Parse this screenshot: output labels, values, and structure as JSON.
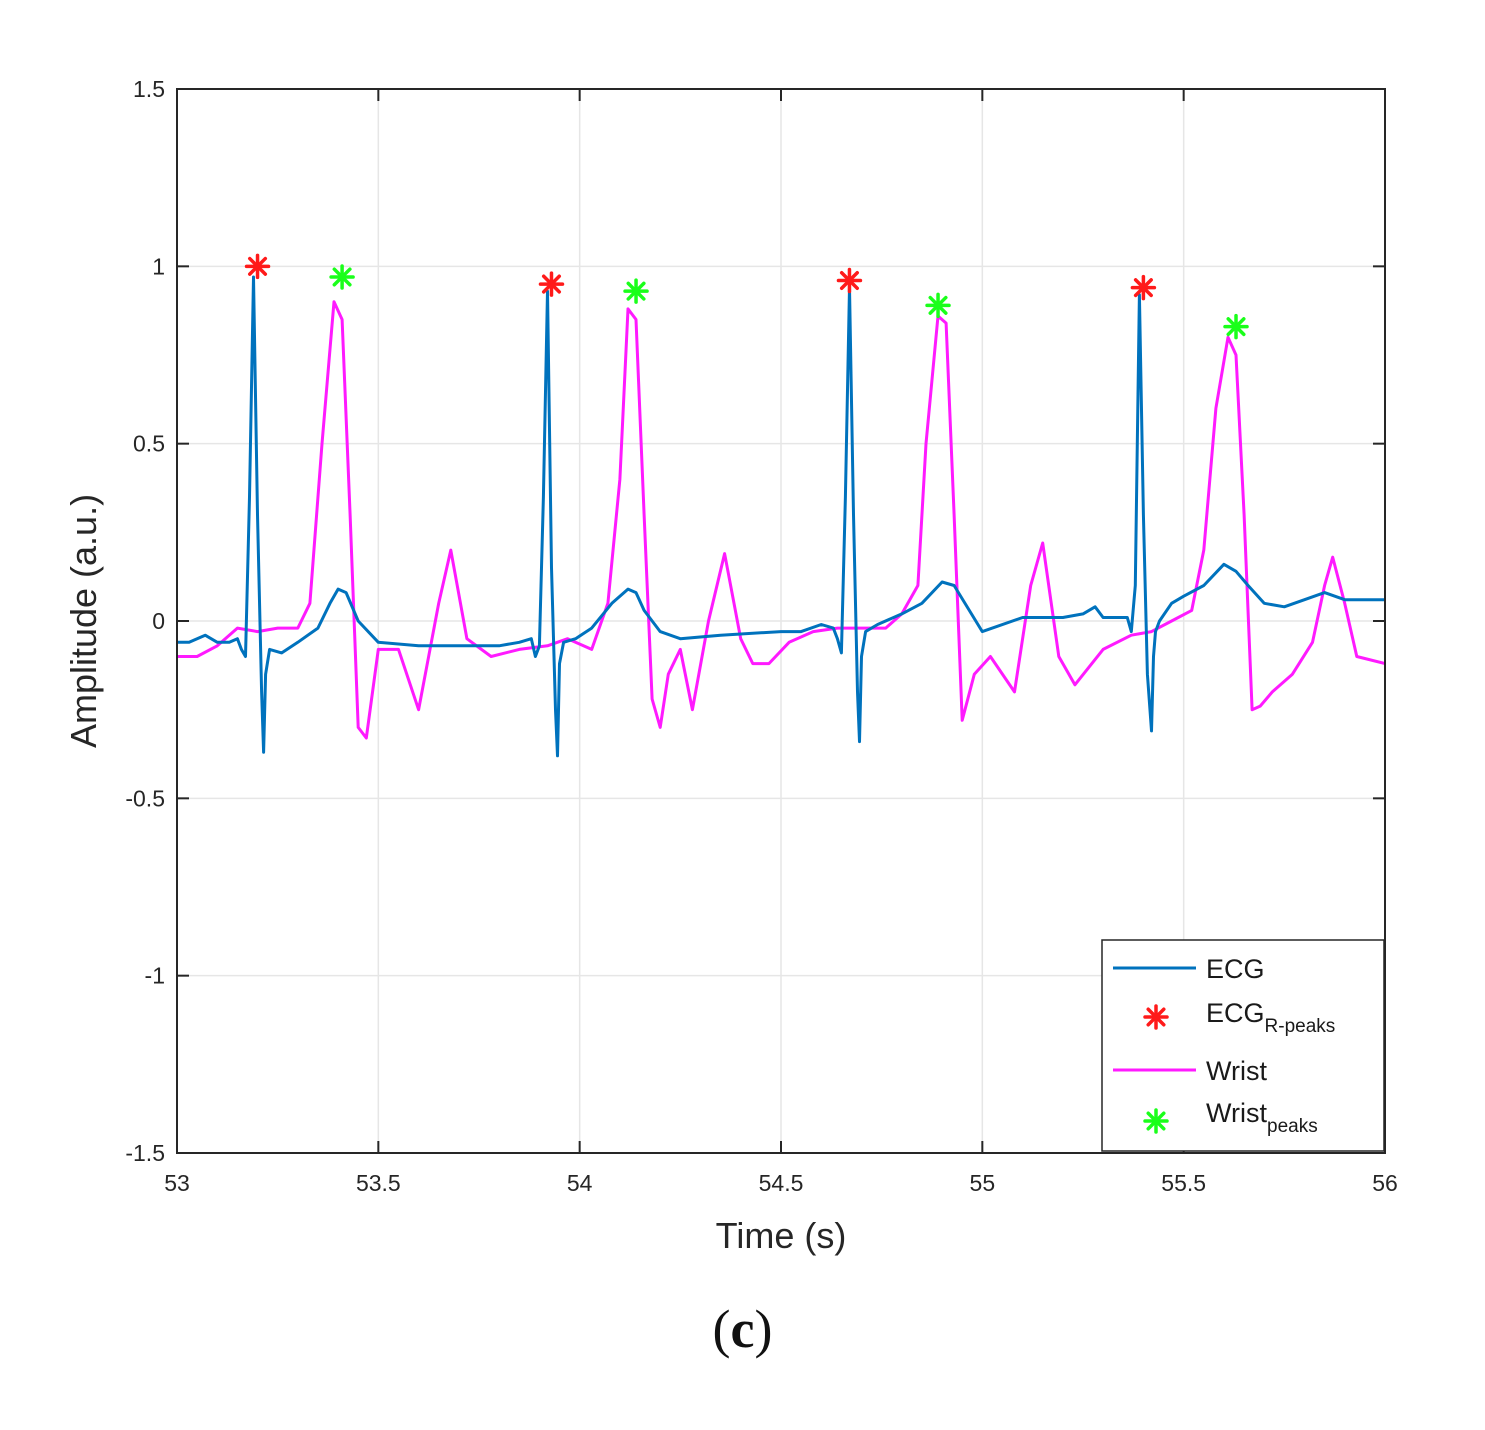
{
  "chart_data": {
    "type": "line",
    "xlabel": "Time (s)",
    "ylabel": "Amplitude (a.u.)",
    "xlim": [
      53,
      56
    ],
    "ylim": [
      -1.5,
      1.5
    ],
    "xticks": [
      53,
      53.5,
      54,
      54.5,
      55,
      55.5,
      56
    ],
    "xtick_labels": [
      "53",
      "53.5",
      "54",
      "54.5",
      "55",
      "55.5",
      "56"
    ],
    "yticks": [
      -1.5,
      -1,
      -0.5,
      0,
      0.5,
      1,
      1.5
    ],
    "ytick_labels": [
      "-1.5",
      "-1",
      "-0.5",
      "0",
      "0.5",
      "1",
      "1.5"
    ],
    "grid": true,
    "legend_position": "bottom-right",
    "series": [
      {
        "name": "ECG",
        "legend_label": "ECG",
        "kind": "line",
        "color": "#0072BD",
        "x": [
          53.0,
          53.03,
          53.07,
          53.1,
          53.13,
          53.15,
          53.16,
          53.17,
          53.18,
          53.19,
          53.2,
          53.21,
          53.215,
          53.22,
          53.23,
          53.26,
          53.3,
          53.35,
          53.38,
          53.4,
          53.42,
          53.45,
          53.5,
          53.6,
          53.7,
          53.8,
          53.85,
          53.88,
          53.89,
          53.9,
          53.91,
          53.92,
          53.93,
          53.94,
          53.945,
          53.95,
          53.96,
          53.99,
          54.03,
          54.08,
          54.12,
          54.14,
          54.16,
          54.2,
          54.25,
          54.35,
          54.5,
          54.55,
          54.6,
          54.63,
          54.64,
          54.65,
          54.66,
          54.67,
          54.68,
          54.69,
          54.695,
          54.7,
          54.71,
          54.74,
          54.8,
          54.85,
          54.9,
          54.93,
          55.0,
          55.1,
          55.2,
          55.25,
          55.28,
          55.3,
          55.36,
          55.37,
          55.38,
          55.39,
          55.4,
          55.41,
          55.42,
          55.425,
          55.43,
          55.44,
          55.47,
          55.5,
          55.55,
          55.6,
          55.63,
          55.66,
          55.7,
          55.75,
          55.8,
          55.85,
          55.9,
          55.95,
          56.0
        ],
        "y": [
          -0.06,
          -0.06,
          -0.04,
          -0.06,
          -0.06,
          -0.05,
          -0.08,
          -0.1,
          0.35,
          0.97,
          0.3,
          -0.2,
          -0.37,
          -0.15,
          -0.08,
          -0.09,
          -0.06,
          -0.02,
          0.05,
          0.09,
          0.08,
          0.0,
          -0.06,
          -0.07,
          -0.07,
          -0.07,
          -0.06,
          -0.05,
          -0.1,
          -0.07,
          0.35,
          0.93,
          0.15,
          -0.25,
          -0.38,
          -0.12,
          -0.06,
          -0.05,
          -0.02,
          0.05,
          0.09,
          0.08,
          0.03,
          -0.03,
          -0.05,
          -0.04,
          -0.03,
          -0.03,
          -0.01,
          -0.02,
          -0.05,
          -0.09,
          0.35,
          0.94,
          0.3,
          -0.2,
          -0.34,
          -0.1,
          -0.03,
          -0.01,
          0.02,
          0.05,
          0.11,
          0.1,
          -0.03,
          0.01,
          0.01,
          0.02,
          0.04,
          0.01,
          0.01,
          -0.03,
          0.1,
          0.92,
          0.3,
          -0.15,
          -0.31,
          -0.1,
          -0.03,
          0.0,
          0.05,
          0.07,
          0.1,
          0.16,
          0.14,
          0.1,
          0.05,
          0.04,
          0.06,
          0.08,
          0.06,
          0.06,
          0.06
        ]
      },
      {
        "name": "ECG R-peaks",
        "legend_label": "ECG",
        "legend_subscript": "R-peaks",
        "kind": "marker",
        "marker": "*",
        "color": "#FF1A1A",
        "x": [
          53.2,
          53.93,
          54.67,
          55.4
        ],
        "y": [
          1.0,
          0.95,
          0.96,
          0.94
        ]
      },
      {
        "name": "Wrist",
        "legend_label": "Wrist",
        "kind": "line",
        "color": "#FF1AFF",
        "x": [
          53.0,
          53.05,
          53.1,
          53.15,
          53.2,
          53.25,
          53.3,
          53.33,
          53.36,
          53.39,
          53.41,
          53.43,
          53.45,
          53.47,
          53.5,
          53.55,
          53.6,
          53.65,
          53.68,
          53.72,
          53.78,
          53.85,
          53.92,
          53.97,
          54.03,
          54.07,
          54.1,
          54.12,
          54.14,
          54.16,
          54.18,
          54.2,
          54.22,
          54.25,
          54.28,
          54.32,
          54.36,
          54.4,
          54.43,
          54.47,
          54.52,
          54.58,
          54.64,
          54.7,
          54.76,
          54.8,
          54.84,
          54.86,
          54.89,
          54.91,
          54.93,
          54.95,
          54.98,
          55.02,
          55.08,
          55.12,
          55.15,
          55.19,
          55.23,
          55.3,
          55.37,
          55.42,
          55.47,
          55.52,
          55.55,
          55.58,
          55.61,
          55.63,
          55.65,
          55.67,
          55.69,
          55.72,
          55.77,
          55.82,
          55.85,
          55.87,
          55.9,
          55.93,
          56.0
        ],
        "y": [
          -0.1,
          -0.1,
          -0.07,
          -0.02,
          -0.03,
          -0.02,
          -0.02,
          0.05,
          0.5,
          0.9,
          0.85,
          0.3,
          -0.3,
          -0.33,
          -0.08,
          -0.08,
          -0.25,
          0.05,
          0.2,
          -0.05,
          -0.1,
          -0.08,
          -0.07,
          -0.05,
          -0.08,
          0.05,
          0.4,
          0.88,
          0.85,
          0.3,
          -0.22,
          -0.3,
          -0.15,
          -0.08,
          -0.25,
          0.0,
          0.19,
          -0.05,
          -0.12,
          -0.12,
          -0.06,
          -0.03,
          -0.02,
          -0.02,
          -0.02,
          0.02,
          0.1,
          0.5,
          0.86,
          0.84,
          0.3,
          -0.28,
          -0.15,
          -0.1,
          -0.2,
          0.1,
          0.22,
          -0.1,
          -0.18,
          -0.08,
          -0.04,
          -0.03,
          0.0,
          0.03,
          0.2,
          0.6,
          0.8,
          0.75,
          0.3,
          -0.25,
          -0.24,
          -0.2,
          -0.15,
          -0.06,
          0.1,
          0.18,
          0.05,
          -0.1,
          -0.12
        ]
      },
      {
        "name": "Wrist peaks",
        "legend_label": "Wrist",
        "legend_subscript": "peaks",
        "kind": "marker",
        "marker": "*",
        "color": "#1AFF1A",
        "x": [
          53.41,
          54.14,
          54.89,
          55.63
        ],
        "y": [
          0.97,
          0.93,
          0.89,
          0.83
        ]
      }
    ]
  },
  "caption": {
    "open": "(",
    "letter": "c",
    "close": ")"
  }
}
